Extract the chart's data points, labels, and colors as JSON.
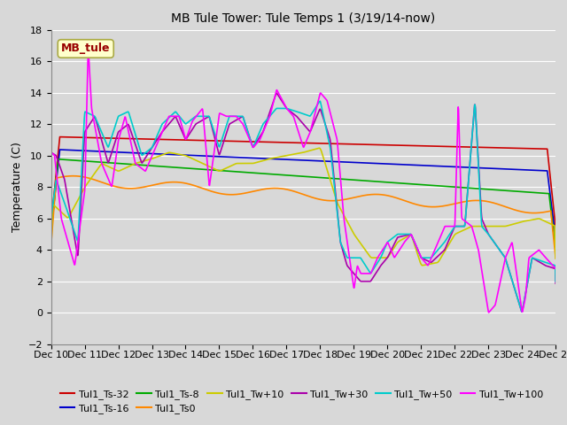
{
  "title": "MB Tule Tower: Tule Temps 1 (3/19/14-now)",
  "ylabel": "Temperature (C)",
  "ylim": [
    -2,
    18
  ],
  "yticks": [
    -2,
    0,
    2,
    4,
    6,
    8,
    10,
    12,
    14,
    16,
    18
  ],
  "bg_color": "#d8d8d8",
  "plot_bg_color": "#d8d8d8",
  "legend_box_label": "MB_tule",
  "legend_box_color": "#ffffcc",
  "legend_box_text_color": "#990000",
  "series_order": [
    "Tul1_Ts-32",
    "Tul1_Ts-16",
    "Tul1_Ts-8",
    "Tul1_Ts0",
    "Tul1_Tw+10",
    "Tul1_Tw+30",
    "Tul1_Tw+50",
    "Tul1_Tw+100"
  ],
  "legend_order": [
    "Tul1_Ts-32",
    "Tul1_Ts-16",
    "Tul1_Ts-8",
    "Tul1_Ts0",
    "Tul1_Tw+10",
    "Tul1_Tw+30",
    "Tul1_Tw+50",
    "Tul1_Tw+100"
  ],
  "series": {
    "Tul1_Ts-32": {
      "color": "#cc0000",
      "lw": 1.2
    },
    "Tul1_Ts-16": {
      "color": "#0000cc",
      "lw": 1.2
    },
    "Tul1_Ts-8": {
      "color": "#00aa00",
      "lw": 1.2
    },
    "Tul1_Ts0": {
      "color": "#ff8800",
      "lw": 1.2
    },
    "Tul1_Tw+10": {
      "color": "#cccc00",
      "lw": 1.2
    },
    "Tul1_Tw+30": {
      "color": "#aa00aa",
      "lw": 1.2
    },
    "Tul1_Tw+50": {
      "color": "#00cccc",
      "lw": 1.2
    },
    "Tul1_Tw+100": {
      "color": "#ff00ff",
      "lw": 1.2
    }
  }
}
